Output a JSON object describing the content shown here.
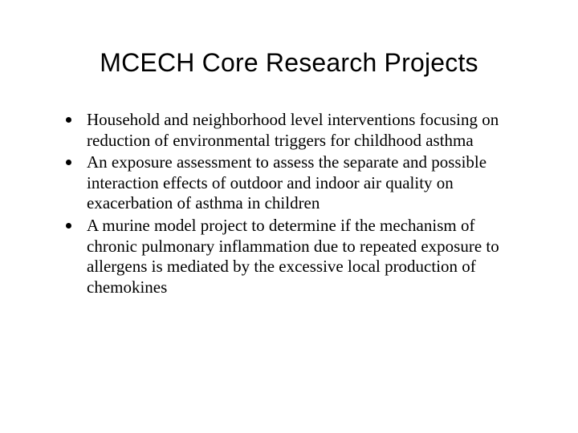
{
  "title": "MCECH Core Research Projects",
  "bullets": [
    "Household and neighborhood level interventions focusing on reduction of environmental triggers for childhood asthma",
    "An exposure assessment to assess the separate and possible interaction effects of outdoor and indoor air quality on exacerbation of asthma in children",
    "A murine model project to determine if the mechanism of chronic pulmonary inflammation due to repeated exposure to allergens is mediated by the excessive local production of chemokines"
  ],
  "colors": {
    "background": "#ffffff",
    "text": "#000000",
    "bullet": "#000000"
  },
  "typography": {
    "title_font": "Arial",
    "title_size_pt": 32,
    "body_font": "Times New Roman",
    "body_size_pt": 21
  }
}
